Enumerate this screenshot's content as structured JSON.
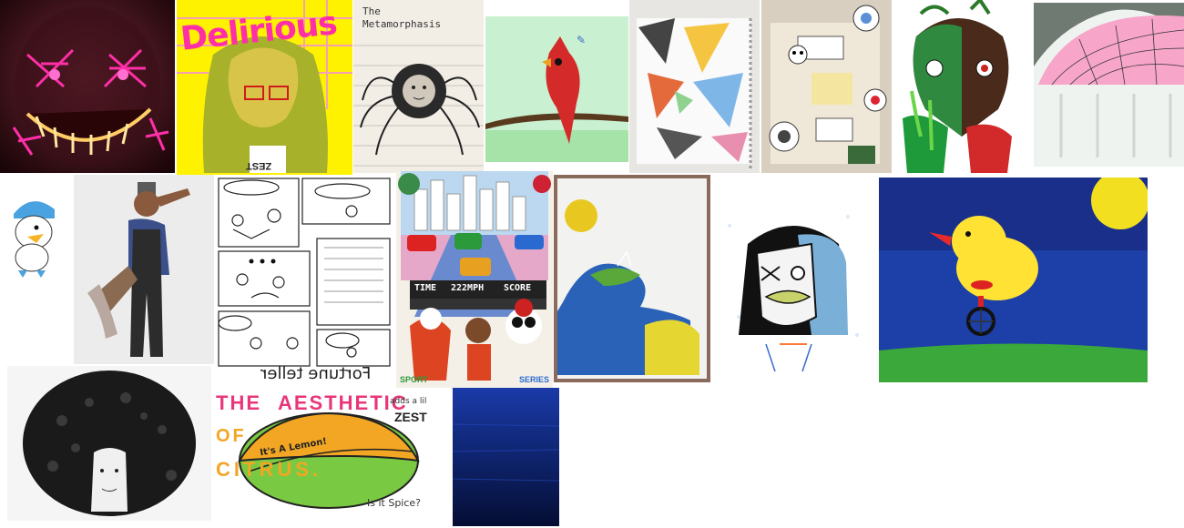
{
  "gallery": {
    "artworks": [
      {
        "label": "Delirious"
      },
      {
        "label": "The Metamorphasis"
      },
      {
        "label": "Fortune teller"
      },
      {
        "label": "TIME"
      },
      {
        "label": "222MPH"
      },
      {
        "label": "SCORE"
      },
      {
        "label": "SPORT"
      },
      {
        "label": "SERIES"
      },
      {
        "label": "THE"
      },
      {
        "label": "AESTHETIC"
      },
      {
        "label": "OF"
      },
      {
        "label": "CITRUS."
      },
      {
        "label": "It's A Lemon!"
      },
      {
        "label": "adds a lil"
      },
      {
        "label": "ZEST"
      },
      {
        "label": "Is it Spice?"
      },
      {
        "label": "ZEST"
      }
    ]
  },
  "colors": {
    "background": "#ffffff",
    "neon_pink": "#ff2fa8",
    "highlighter_yellow": "#fff200",
    "cardinal_red": "#d42a2a",
    "mint": "#c9f0d0",
    "deep_blue": "#1c3fa8",
    "chick_yellow": "#ffe233",
    "lemon_orange": "#f2a623",
    "lime_green": "#7ac943"
  }
}
